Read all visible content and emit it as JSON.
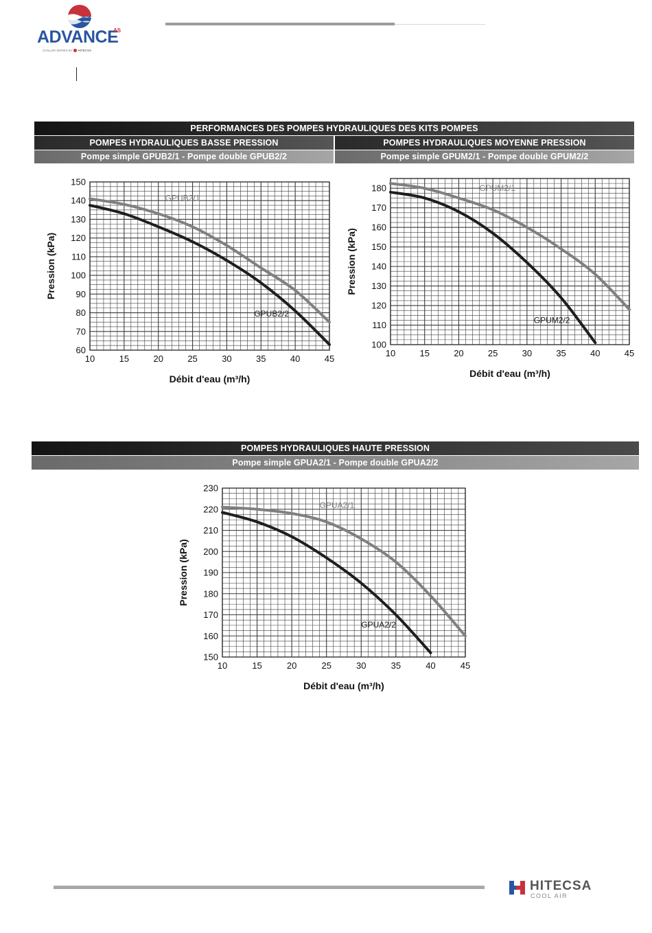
{
  "header": {
    "brand": "ADVANCE",
    "brand_suffix": "AS",
    "brand_tagline": "CHILLER SERIES BY",
    "brand_tagline_maker": "HITECSA"
  },
  "sections": {
    "main_title": "PERFORMANCES DES POMPES HYDRAULIQUES DES KITS POMPES",
    "low_title": "POMPES HYDRAULIQUES BASSE PRESSION",
    "medium_title": "POMPES HYDRAULIQUES MOYENNE PRESSION",
    "low_subtitle": "Pompe simple GPUB2/1 - Pompe double GPUB2/2",
    "medium_subtitle": "Pompe simple GPUM2/1 - Pompe double GPUM2/2",
    "high_title": "POMPES HYDRAULIQUES HAUTE PRESSION",
    "high_subtitle": "Pompe simple GPUA2/1 - Pompe double GPUA2/2"
  },
  "footer": {
    "brand": "HITECSA",
    "tagline": "COOL AIR"
  },
  "colors": {
    "series_single": "#808080",
    "series_double": "#1e1e1e",
    "grid": "#3a3a3a",
    "brand_red": "#c8323c",
    "brand_blue": "#2a55a0",
    "brand_grey": "#7a7a7a"
  },
  "chart_data": [
    {
      "type": "line",
      "ylabel": "Pression (kPa)",
      "xlabel": "Débit d'eau (m³/h)",
      "xlim": [
        10,
        45
      ],
      "ylim": [
        60,
        150
      ],
      "xticks": [
        10,
        15,
        20,
        25,
        30,
        35,
        40,
        45
      ],
      "yticks": [
        60,
        70,
        80,
        90,
        100,
        110,
        120,
        130,
        140,
        150
      ],
      "grid": true,
      "series": [
        {
          "name": "GPUB2/1",
          "role": "single",
          "x": [
            10,
            15,
            20,
            25,
            30,
            35,
            40,
            45
          ],
          "y": [
            141,
            138,
            133,
            126,
            116,
            104,
            92,
            75
          ]
        },
        {
          "name": "GPUB2/2",
          "role": "double",
          "x": [
            10,
            15,
            20,
            25,
            30,
            35,
            40,
            45
          ],
          "y": [
            137.5,
            133,
            126,
            118,
            108,
            96,
            81,
            63
          ]
        }
      ]
    },
    {
      "type": "line",
      "ylabel": "Pression (kPa)",
      "xlabel": "Débit d'eau (m³/h)",
      "xlim": [
        10,
        45
      ],
      "ylim": [
        100,
        185
      ],
      "xticks": [
        10,
        15,
        20,
        25,
        30,
        35,
        40,
        45
      ],
      "yticks": [
        100,
        110,
        120,
        130,
        140,
        150,
        160,
        170,
        180
      ],
      "grid": true,
      "series": [
        {
          "name": "GPUM2/1",
          "role": "single",
          "x": [
            10,
            15,
            20,
            25,
            30,
            35,
            40,
            45
          ],
          "y": [
            182.5,
            180,
            175,
            169,
            160,
            149,
            136,
            118
          ]
        },
        {
          "name": "GPUM2/2",
          "role": "double",
          "x": [
            10,
            15,
            20,
            25,
            30,
            35,
            40
          ],
          "y": [
            178,
            175,
            168,
            157,
            142,
            124,
            101
          ]
        }
      ]
    },
    {
      "type": "line",
      "ylabel": "Pression (kPa)",
      "xlabel": "Débit d'eau (m³/h)",
      "xlim": [
        10,
        45
      ],
      "ylim": [
        150,
        230
      ],
      "xticks": [
        10,
        15,
        20,
        25,
        30,
        35,
        40,
        45
      ],
      "yticks": [
        150,
        160,
        170,
        180,
        190,
        200,
        210,
        220,
        230
      ],
      "grid": true,
      "series": [
        {
          "name": "GPUA2/1",
          "role": "single",
          "x": [
            10,
            15,
            20,
            25,
            30,
            35,
            40,
            45
          ],
          "y": [
            221,
            220,
            218,
            214,
            206,
            195,
            179,
            160
          ]
        },
        {
          "name": "GPUA2/2",
          "role": "double",
          "x": [
            10,
            15,
            20,
            25,
            30,
            35,
            40
          ],
          "y": [
            218.5,
            214,
            207,
            197,
            185,
            170,
            152
          ]
        }
      ]
    }
  ]
}
